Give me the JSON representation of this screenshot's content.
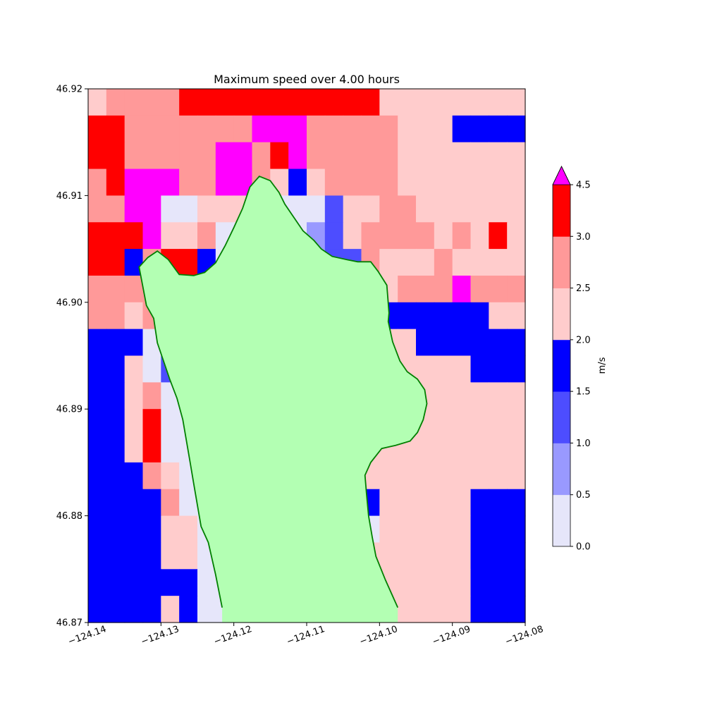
{
  "chart_data": {
    "type": "heatmap",
    "title": "Maximum speed over 4.00 hours",
    "xlabel": "",
    "ylabel": "",
    "xlim": [
      -124.14,
      -124.08
    ],
    "ylim": [
      46.87,
      46.92
    ],
    "x_ticks": [
      -124.14,
      -124.13,
      -124.12,
      -124.11,
      -124.1,
      -124.09,
      -124.08
    ],
    "x_tick_labels": [
      "−124.14",
      "−124.13",
      "−124.12",
      "−124.11",
      "−124.10",
      "−124.09",
      "−124.08"
    ],
    "y_ticks": [
      46.87,
      46.88,
      46.89,
      46.9,
      46.91,
      46.92
    ],
    "y_tick_labels": [
      "46.87",
      "46.88",
      "46.89",
      "46.90",
      "46.91",
      "46.92"
    ],
    "grid": false,
    "ncols": 24,
    "nrows": 20,
    "cell_codes_note": "",
    "grid_rows_top_to_bottom": [
      "455556666666666644444444",
      "665555555777555554443333",
      "665555577567555554444444",
      "567775577543455554444444",
      "557700444000024455444444",
      "666744500000124555545464",
      "663566300000122544454444",
      "555543300002221445557555",
      "554565400002220033333344",
      "333000000000000444333333",
      "334022000000001444444333",
      "334500000000003444444444",
      "334600000000000444444444",
      "334600000000000444444444",
      "333540000000001444444444",
      "333350000000003344444333",
      "333344000000000044444333",
      "333344000000011444444333",
      "333333000000000444444333",
      "333343000000000444444333"
    ],
    "levels": [
      0.0,
      0.5,
      1.0,
      1.5,
      2.0,
      2.5,
      3.0,
      4.5
    ],
    "level_tick_labels": [
      "0.0",
      "0.5",
      "1.0",
      "1.5",
      "2.0",
      "2.5",
      "3.0",
      "4.5"
    ],
    "colors": [
      "#e6e6fa",
      "#9999ff",
      "#4d4dff",
      "#0000ff",
      "#ffcccc",
      "#ff9999",
      "#ff0000"
    ],
    "extend_color": "#ff00ff",
    "land_color": "#b3ffb3",
    "colorbar_label": "m/s",
    "shoreline_color": "#007f00",
    "shoreline_west": [
      [
        -124.1216,
        46.8714
      ],
      [
        -124.1225,
        46.8745
      ],
      [
        -124.1235,
        46.8775
      ],
      [
        -124.1245,
        46.879
      ],
      [
        -124.125,
        46.881
      ],
      [
        -124.1255,
        46.883
      ],
      [
        -124.126,
        46.885
      ],
      [
        -124.1265,
        46.887
      ],
      [
        -124.127,
        46.889
      ],
      [
        -124.1278,
        46.891
      ],
      [
        -124.1288,
        46.8928
      ],
      [
        -124.1298,
        46.8948
      ],
      [
        -124.1305,
        46.8962
      ],
      [
        -124.131,
        46.8985
      ],
      [
        -124.132,
        46.8997
      ],
      [
        -124.1325,
        46.9015
      ],
      [
        -124.133,
        46.9033
      ],
      [
        -124.1318,
        46.9042
      ],
      [
        -124.1305,
        46.9048
      ],
      [
        -124.129,
        46.904
      ],
      [
        -124.1275,
        46.9026
      ],
      [
        -124.1255,
        46.9025
      ],
      [
        -124.124,
        46.9028
      ],
      [
        -124.1225,
        46.9037
      ],
      [
        -124.1212,
        46.9053
      ],
      [
        -124.12,
        46.907
      ],
      [
        -124.1188,
        46.9088
      ],
      [
        -124.1178,
        46.9108
      ],
      [
        -124.1165,
        46.9118
      ],
      [
        -124.115,
        46.9114
      ],
      [
        -124.1138,
        46.9103
      ],
      [
        -124.113,
        46.9092
      ],
      [
        -124.1118,
        46.908
      ],
      [
        -124.1105,
        46.9067
      ],
      [
        -124.109,
        46.9058
      ],
      [
        -124.108,
        46.905
      ],
      [
        -124.1065,
        46.9043
      ],
      [
        -124.1045,
        46.904
      ],
      [
        -124.103,
        46.9038
      ],
      [
        -124.1012,
        46.9038
      ],
      [
        -124.1002,
        46.9029
      ],
      [
        -124.099,
        46.9016
      ],
      [
        -124.0987,
        46.899
      ],
      [
        -124.0988,
        46.8982
      ],
      [
        -124.0982,
        46.8963
      ],
      [
        -124.0972,
        46.8945
      ],
      [
        -124.0962,
        46.8935
      ],
      [
        -124.0948,
        46.8928
      ],
      [
        -124.0938,
        46.8918
      ],
      [
        -124.0935,
        46.8905
      ],
      [
        -124.094,
        46.889
      ],
      [
        -124.0948,
        46.8878
      ],
      [
        -124.0958,
        46.887
      ],
      [
        -124.0978,
        46.8866
      ],
      [
        -124.0997,
        46.8863
      ],
      [
        -124.1012,
        46.885
      ],
      [
        -124.102,
        46.8838
      ],
      [
        -124.1018,
        46.8822
      ],
      [
        -124.1015,
        46.88
      ],
      [
        -124.101,
        46.878
      ],
      [
        -124.1005,
        46.8762
      ],
      [
        -124.0992,
        46.874
      ],
      [
        -124.0975,
        46.8714
      ]
    ]
  }
}
